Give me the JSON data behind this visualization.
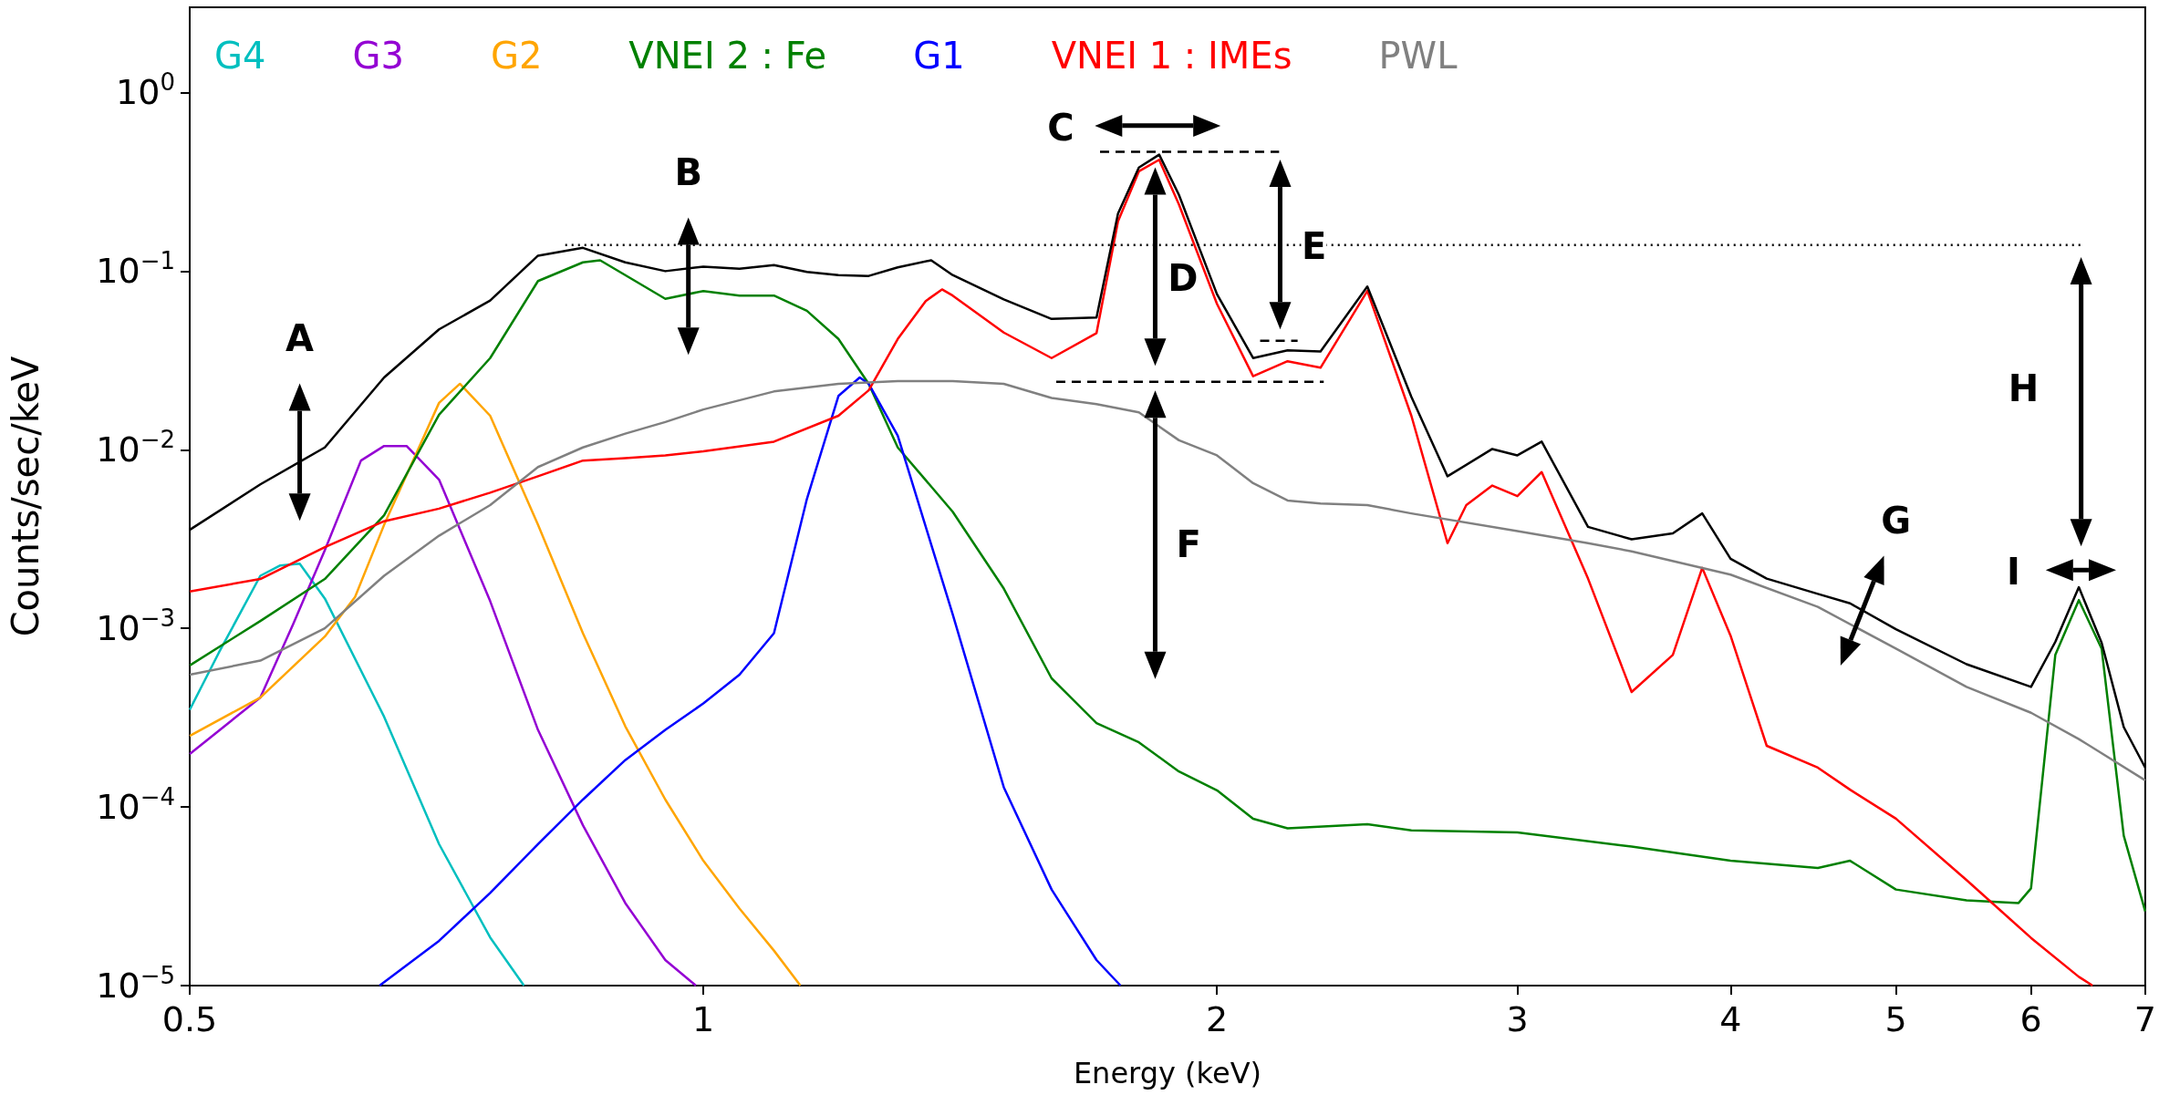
{
  "chart_data": {
    "type": "line",
    "xlabel": "Energy (keV)",
    "ylabel": "Counts/sec/keV",
    "log": "xy",
    "grid": false,
    "legend": "top left",
    "marker": "none",
    "line_style": "solid",
    "xlim": [
      0.5,
      7
    ],
    "xticks": [
      0.5,
      1,
      2,
      3,
      4,
      5,
      6,
      7
    ],
    "ylim": [
      1e-05,
      3
    ],
    "yticks": [
      {
        "value": 1e-05,
        "label": "10$^{−5}$"
      },
      {
        "value": 0.0001,
        "label": "10$^{−4}$"
      },
      {
        "value": 0.001,
        "label": "10$^{−3}$"
      },
      {
        "value": 0.01,
        "label": "10$^{−2}$"
      },
      {
        "value": 0.1,
        "label": "10$^{−1}$"
      },
      {
        "value": 1,
        "label": "10$^{0}$"
      }
    ],
    "series": [
      {
        "name": "G4",
        "color": "#00bfbf",
        "x": [
          0.5,
          0.52,
          0.55,
          0.565,
          0.58,
          0.6,
          0.65,
          0.7,
          0.75,
          0.785
        ],
        "values": [
          0.00035,
          0.00073,
          0.00197,
          0.00225,
          0.0023,
          0.00147,
          0.00032,
          6.2e-05,
          1.86e-05,
          1e-05
        ]
      },
      {
        "name": "G3",
        "color": "#9400d3",
        "x": [
          0.5,
          0.55,
          0.575,
          0.6,
          0.63,
          0.65,
          0.67,
          0.7,
          0.75,
          0.8,
          0.85,
          0.9,
          0.95,
          0.99
        ],
        "values": [
          0.000198,
          0.00041,
          0.00106,
          0.00274,
          0.0087,
          0.0105,
          0.0105,
          0.0068,
          0.00142,
          0.00027,
          7.9e-05,
          2.9e-05,
          1.39e-05,
          1e-05
        ]
      },
      {
        "name": "G2",
        "color": "#ffa500",
        "x": [
          0.5,
          0.55,
          0.6,
          0.625,
          0.65,
          0.7,
          0.72,
          0.75,
          0.8,
          0.85,
          0.9,
          0.95,
          1.0,
          1.05,
          1.1,
          1.14
        ],
        "values": [
          0.00025,
          0.00041,
          0.0009,
          0.0015,
          0.0038,
          0.0183,
          0.0234,
          0.0155,
          0.0038,
          0.00094,
          0.000283,
          0.00011,
          5e-05,
          2.7e-05,
          1.57e-05,
          1e-05
        ]
      },
      {
        "name": "VNEI 2 : Fe",
        "color": "#008000",
        "x": [
          0.5,
          0.55,
          0.6,
          0.65,
          0.7,
          0.75,
          0.8,
          0.85,
          0.87,
          0.9,
          0.95,
          1.0,
          1.05,
          1.1,
          1.15,
          1.2,
          1.25,
          1.3,
          1.4,
          1.5,
          1.6,
          1.7,
          1.8,
          1.9,
          2.0,
          2.1,
          2.2,
          2.45,
          2.6,
          3.0,
          3.5,
          4.0,
          4.5,
          4.7,
          5.0,
          5.5,
          5.9,
          6.0,
          6.2,
          6.4,
          6.6,
          6.8,
          7.0
        ],
        "values": [
          0.00062,
          0.0011,
          0.00189,
          0.0043,
          0.0157,
          0.0326,
          0.088,
          0.112,
          0.115,
          0.095,
          0.07,
          0.0774,
          0.073,
          0.073,
          0.06,
          0.0417,
          0.0234,
          0.0103,
          0.0045,
          0.00167,
          0.000525,
          0.000295,
          0.00023,
          0.000158,
          0.000124,
          8.6e-05,
          7.6e-05,
          8e-05,
          7.4e-05,
          7.2e-05,
          6e-05,
          5e-05,
          4.55e-05,
          5e-05,
          3.45e-05,
          3e-05,
          2.9e-05,
          3.5e-05,
          0.00071,
          0.00144,
          0.00077,
          6.9e-05,
          2.6e-05
        ]
      },
      {
        "name": "G1",
        "color": "#0000ff",
        "x": [
          0.646,
          0.7,
          0.75,
          0.8,
          0.85,
          0.9,
          0.95,
          1.0,
          1.05,
          1.1,
          1.15,
          1.2,
          1.235,
          1.25,
          1.3,
          1.4,
          1.5,
          1.6,
          1.7,
          1.756
        ],
        "values": [
          1e-05,
          1.78e-05,
          3.3e-05,
          6.2e-05,
          0.00011,
          0.000183,
          0.00027,
          0.00038,
          0.00055,
          0.00094,
          0.0053,
          0.02,
          0.0254,
          0.0234,
          0.012,
          0.0012,
          0.000129,
          3.45e-05,
          1.39e-05,
          1e-05
        ]
      },
      {
        "name": "VNEI 1 : IMEs",
        "color": "#ff0000",
        "x": [
          0.5,
          0.55,
          0.6,
          0.65,
          0.7,
          0.75,
          0.8,
          0.85,
          0.9,
          0.95,
          1.0,
          1.1,
          1.2,
          1.25,
          1.3,
          1.35,
          1.38,
          1.4,
          1.5,
          1.6,
          1.7,
          1.75,
          1.8,
          1.85,
          1.9,
          2.0,
          2.1,
          2.2,
          2.3,
          2.45,
          2.6,
          2.73,
          2.8,
          2.9,
          3.0,
          3.1,
          3.3,
          3.5,
          3.7,
          3.85,
          4.0,
          4.2,
          4.5,
          4.7,
          5.0,
          5.5,
          6.0,
          6.4,
          6.52
        ],
        "values": [
          0.00161,
          0.00189,
          0.00285,
          0.00398,
          0.00468,
          0.00575,
          0.0071,
          0.0087,
          0.00898,
          0.0093,
          0.0098,
          0.0111,
          0.0155,
          0.0215,
          0.0417,
          0.068,
          0.079,
          0.073,
          0.0453,
          0.0326,
          0.045,
          0.19,
          0.362,
          0.42,
          0.236,
          0.0656,
          0.0258,
          0.0313,
          0.0288,
          0.0774,
          0.0155,
          0.003,
          0.0049,
          0.0063,
          0.0055,
          0.0075,
          0.0019,
          0.00044,
          0.00071,
          0.00218,
          0.00091,
          0.00022,
          0.000166,
          0.000125,
          8.6e-05,
          3.9e-05,
          1.85e-05,
          1.12e-05,
          1e-05
        ]
      },
      {
        "name": "PWL",
        "color": "#808080",
        "x": [
          0.5,
          0.55,
          0.6,
          0.65,
          0.7,
          0.75,
          0.8,
          0.85,
          0.9,
          0.95,
          1.0,
          1.1,
          1.2,
          1.3,
          1.4,
          1.5,
          1.6,
          1.7,
          1.8,
          1.9,
          2.0,
          2.1,
          2.2,
          2.3,
          2.45,
          2.6,
          3.0,
          3.3,
          3.5,
          4.0,
          4.5,
          5.0,
          5.5,
          6.0,
          6.4,
          7.0
        ],
        "values": [
          0.00055,
          0.00066,
          0.001,
          0.00197,
          0.0033,
          0.0049,
          0.008,
          0.0103,
          0.0123,
          0.0143,
          0.0168,
          0.0212,
          0.0234,
          0.0242,
          0.0242,
          0.0234,
          0.0195,
          0.018,
          0.0162,
          0.0113,
          0.0093,
          0.0065,
          0.0052,
          0.005,
          0.0049,
          0.0044,
          0.0035,
          0.003,
          0.0027,
          0.002,
          0.00132,
          0.00077,
          0.00047,
          0.000337,
          0.00024,
          0.000141
        ]
      },
      {
        "color": "#000000",
        "x": [
          0.5,
          0.55,
          0.6,
          0.65,
          0.7,
          0.75,
          0.8,
          0.85,
          0.9,
          0.95,
          1.0,
          1.05,
          1.1,
          1.15,
          1.2,
          1.25,
          1.3,
          1.36,
          1.4,
          1.5,
          1.6,
          1.7,
          1.75,
          1.8,
          1.85,
          1.9,
          2.0,
          2.1,
          2.2,
          2.3,
          2.45,
          2.6,
          2.73,
          2.9,
          3.0,
          3.1,
          3.3,
          3.5,
          3.7,
          3.85,
          4.0,
          4.2,
          4.5,
          4.7,
          5.0,
          5.5,
          6.0,
          6.2,
          6.4,
          6.6,
          6.8,
          7.0
        ],
        "values": [
          0.00356,
          0.0064,
          0.0103,
          0.0254,
          0.0472,
          0.0684,
          0.122,
          0.135,
          0.112,
          0.1,
          0.106,
          0.103,
          0.108,
          0.099,
          0.095,
          0.094,
          0.105,
          0.115,
          0.095,
          0.0695,
          0.054,
          0.055,
          0.21,
          0.38,
          0.449,
          0.267,
          0.0743,
          0.0326,
          0.036,
          0.0355,
          0.082,
          0.0198,
          0.0071,
          0.0101,
          0.0093,
          0.0111,
          0.0037,
          0.00315,
          0.0034,
          0.0044,
          0.00245,
          0.0019,
          0.00156,
          0.00138,
          0.00099,
          0.00063,
          0.00047,
          0.00084,
          0.0017,
          0.00083,
          0.00028,
          0.000166
        ]
      },
      {
        "color": "#000000",
        "line_style": "dotted",
        "x": [
          0.83,
          6.43
        ],
        "values": [
          0.14,
          0.14
        ]
      },
      {
        "color": "#000000",
        "line_style": "dashed",
        "x": [
          1.708,
          2.175
        ],
        "values": [
          0.466,
          0.466
        ]
      },
      {
        "color": "#000000",
        "line_style": "dashed",
        "x": [
          1.61,
          2.31
        ],
        "values": [
          0.024,
          0.024
        ]
      },
      {
        "color": "#000000",
        "line_style": "dashed",
        "x": [
          2.12,
          2.23
        ],
        "values": [
          0.0407,
          0.0407
        ]
      }
    ],
    "annotations": [
      "A",
      "B",
      "C",
      "D",
      "E",
      "F",
      "G",
      "H",
      "I"
    ]
  }
}
